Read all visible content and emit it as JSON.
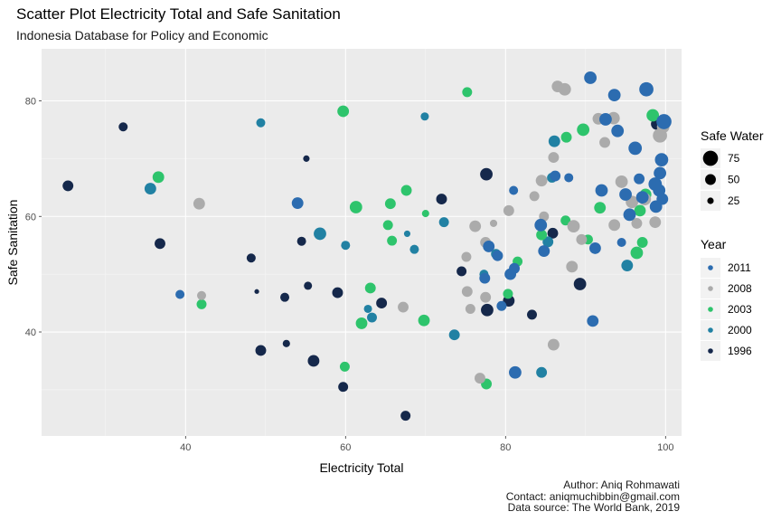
{
  "chart_data": {
    "type": "scatter",
    "title": "Scatter Plot Electricity Total and Safe Sanitation",
    "subtitle": "Indonesia Database for Policy and Economic",
    "xlabel": "Electricity Total",
    "ylabel": "Safe Sanitation",
    "xlim": [
      22,
      102
    ],
    "ylim": [
      22,
      89
    ],
    "x_ticks": [
      40,
      60,
      80,
      100
    ],
    "y_ticks": [
      40,
      60,
      80
    ],
    "grid": true,
    "caption": [
      "Author: Aniq Rohmawati",
      "Contact: aniqmuchibbin@gmail.com",
      "Data source: The World Bank, 2019"
    ],
    "size_legend": {
      "title": "Safe Water",
      "entries": [
        {
          "label": "75",
          "value": 75
        },
        {
          "label": "50",
          "value": 50
        },
        {
          "label": "25",
          "value": 25
        }
      ]
    },
    "color_legend": {
      "title": "Year",
      "entries": [
        {
          "label": "2011",
          "color": "#2C6CB0"
        },
        {
          "label": "2008",
          "color": "#ABABAB"
        },
        {
          "label": "2003",
          "color": "#2EC46C"
        },
        {
          "label": "2000",
          "color": "#2181A3"
        },
        {
          "label": "1996",
          "color": "#15284B"
        }
      ]
    },
    "series": [
      {
        "name": "1996",
        "color": "#15284B",
        "points": [
          [
            25.3,
            65.3,
            50
          ],
          [
            32.2,
            75.5,
            40
          ],
          [
            36.8,
            55.3,
            50
          ],
          [
            48.2,
            52.8,
            40
          ],
          [
            48.9,
            47.0,
            15
          ],
          [
            49.4,
            36.8,
            50
          ],
          [
            52.4,
            46.0,
            40
          ],
          [
            52.6,
            38.0,
            30
          ],
          [
            54.5,
            55.7,
            40
          ],
          [
            55.1,
            70.0,
            25
          ],
          [
            55.3,
            48.0,
            35
          ],
          [
            56.0,
            35.0,
            55
          ],
          [
            59.0,
            46.8,
            50
          ],
          [
            59.7,
            30.5,
            45
          ],
          [
            64.5,
            45.0,
            50
          ],
          [
            67.5,
            25.5,
            45
          ],
          [
            72.0,
            63.0,
            50
          ],
          [
            74.5,
            50.5,
            45
          ],
          [
            77.6,
            67.3,
            60
          ],
          [
            77.7,
            43.8,
            60
          ],
          [
            80.4,
            45.4,
            55
          ],
          [
            83.3,
            43.0,
            45
          ],
          [
            85.9,
            57.1,
            50
          ],
          [
            89.3,
            48.3,
            60
          ],
          [
            98.9,
            76.0,
            55
          ]
        ]
      },
      {
        "name": "2000",
        "color": "#2181A3",
        "points": [
          [
            35.6,
            64.8,
            55
          ],
          [
            49.4,
            76.2,
            40
          ],
          [
            56.8,
            57.0,
            60
          ],
          [
            60.0,
            55.0,
            40
          ],
          [
            62.8,
            44.0,
            35
          ],
          [
            63.3,
            42.5,
            45
          ],
          [
            67.7,
            57.0,
            25
          ],
          [
            68.6,
            54.3,
            40
          ],
          [
            69.9,
            77.3,
            35
          ],
          [
            72.3,
            59.0,
            45
          ],
          [
            73.6,
            39.5,
            50
          ],
          [
            77.3,
            50.0,
            40
          ],
          [
            78.8,
            53.5,
            45
          ],
          [
            84.5,
            33.0,
            50
          ],
          [
            85.3,
            55.6,
            50
          ],
          [
            85.8,
            66.7,
            45
          ],
          [
            86.1,
            73.0,
            55
          ],
          [
            95.2,
            51.5,
            55
          ]
        ]
      },
      {
        "name": "2003",
        "color": "#2EC46C",
        "points": [
          [
            36.6,
            66.8,
            55
          ],
          [
            42.0,
            44.8,
            45
          ],
          [
            59.7,
            78.2,
            55
          ],
          [
            59.9,
            34.0,
            45
          ],
          [
            61.3,
            61.6,
            60
          ],
          [
            62.0,
            41.5,
            55
          ],
          [
            63.1,
            47.6,
            50
          ],
          [
            65.3,
            58.5,
            45
          ],
          [
            65.6,
            62.2,
            50
          ],
          [
            65.8,
            55.8,
            45
          ],
          [
            67.6,
            64.5,
            50
          ],
          [
            69.8,
            42.0,
            55
          ],
          [
            70.0,
            60.5,
            30
          ],
          [
            75.2,
            81.5,
            45
          ],
          [
            77.6,
            31.0,
            50
          ],
          [
            80.3,
            46.6,
            45
          ],
          [
            81.5,
            52.2,
            45
          ],
          [
            84.5,
            56.8,
            50
          ],
          [
            87.5,
            59.3,
            45
          ],
          [
            87.6,
            73.7,
            50
          ],
          [
            89.7,
            75.0,
            60
          ],
          [
            90.3,
            56.0,
            45
          ],
          [
            91.8,
            61.5,
            55
          ],
          [
            96.4,
            53.7,
            60
          ],
          [
            96.8,
            61.0,
            55
          ],
          [
            97.1,
            55.5,
            50
          ],
          [
            97.5,
            63.8,
            55
          ],
          [
            98.4,
            77.5,
            60
          ]
        ]
      },
      {
        "name": "2008",
        "color": "#ABABAB",
        "points": [
          [
            41.7,
            62.2,
            55
          ],
          [
            42.0,
            46.3,
            40
          ],
          [
            67.2,
            44.3,
            50
          ],
          [
            75.1,
            53.0,
            45
          ],
          [
            75.2,
            47.0,
            50
          ],
          [
            75.6,
            44.0,
            45
          ],
          [
            76.2,
            58.3,
            55
          ],
          [
            76.8,
            32.0,
            50
          ],
          [
            77.5,
            46.0,
            50
          ],
          [
            77.5,
            55.5,
            50
          ],
          [
            78.5,
            58.8,
            30
          ],
          [
            80.4,
            61.0,
            50
          ],
          [
            83.6,
            63.5,
            45
          ],
          [
            84.5,
            66.2,
            55
          ],
          [
            84.8,
            60.0,
            45
          ],
          [
            86.0,
            37.8,
            55
          ],
          [
            86.0,
            70.2,
            50
          ],
          [
            86.5,
            82.5,
            55
          ],
          [
            87.4,
            82.0,
            60
          ],
          [
            88.3,
            51.3,
            55
          ],
          [
            88.5,
            58.3,
            60
          ],
          [
            89.5,
            56.0,
            50
          ],
          [
            91.6,
            76.9,
            55
          ],
          [
            92.4,
            72.8,
            50
          ],
          [
            93.5,
            77.0,
            60
          ],
          [
            93.6,
            58.5,
            55
          ],
          [
            94.5,
            66.0,
            60
          ],
          [
            95.8,
            62.5,
            60
          ],
          [
            96.4,
            58.8,
            50
          ],
          [
            97.4,
            63.0,
            60
          ],
          [
            98.7,
            59.0,
            55
          ],
          [
            99.3,
            74.0,
            70
          ],
          [
            99.7,
            75.5,
            60
          ]
        ]
      },
      {
        "name": "2011",
        "color": "#2C6CB0",
        "points": [
          [
            39.3,
            46.5,
            40
          ],
          [
            54.0,
            62.3,
            55
          ],
          [
            77.4,
            49.3,
            50
          ],
          [
            77.9,
            54.8,
            55
          ],
          [
            79.0,
            53.2,
            50
          ],
          [
            79.5,
            44.5,
            45
          ],
          [
            80.6,
            50.0,
            55
          ],
          [
            81.0,
            64.5,
            40
          ],
          [
            81.1,
            51.0,
            50
          ],
          [
            81.2,
            33.0,
            60
          ],
          [
            84.4,
            58.5,
            60
          ],
          [
            84.8,
            54.0,
            55
          ],
          [
            86.2,
            67.0,
            50
          ],
          [
            87.9,
            66.7,
            40
          ],
          [
            90.6,
            84.0,
            60
          ],
          [
            90.9,
            41.9,
            55
          ],
          [
            91.2,
            54.5,
            55
          ],
          [
            92.0,
            64.5,
            60
          ],
          [
            92.5,
            76.8,
            60
          ],
          [
            93.6,
            81.0,
            60
          ],
          [
            94.0,
            74.8,
            60
          ],
          [
            94.5,
            55.5,
            40
          ],
          [
            95.0,
            63.8,
            60
          ],
          [
            95.5,
            60.3,
            60
          ],
          [
            96.2,
            71.8,
            65
          ],
          [
            96.7,
            66.5,
            50
          ],
          [
            97.1,
            63.3,
            60
          ],
          [
            97.6,
            82.0,
            70
          ],
          [
            98.7,
            65.6,
            65
          ],
          [
            98.8,
            61.7,
            60
          ],
          [
            99.2,
            64.5,
            60
          ],
          [
            99.3,
            67.5,
            60
          ],
          [
            99.5,
            69.8,
            65
          ],
          [
            99.6,
            63.0,
            55
          ],
          [
            99.8,
            76.4,
            75
          ]
        ]
      }
    ]
  }
}
